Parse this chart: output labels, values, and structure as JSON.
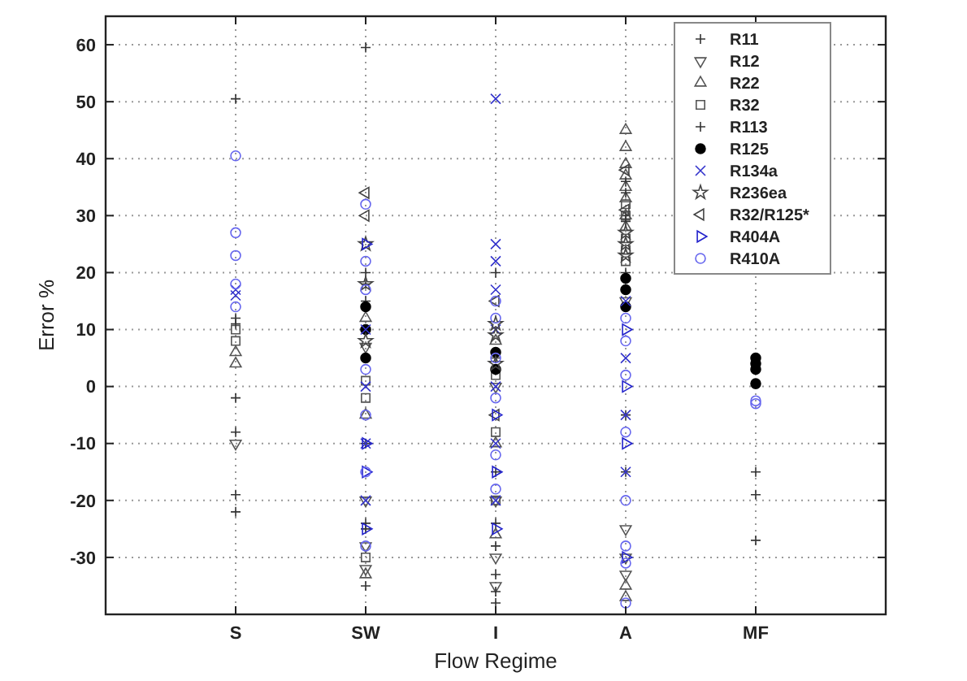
{
  "chart_data": {
    "type": "scatter",
    "xlabel": "Flow Regime",
    "ylabel": "Error %",
    "categories": [
      "S",
      "SW",
      "I",
      "A",
      "MF"
    ],
    "ylim": [
      -40,
      65
    ],
    "yticks": [
      -30,
      -20,
      -10,
      0,
      10,
      20,
      30,
      40,
      50,
      60
    ],
    "grid": true,
    "legend": "top right",
    "series": [
      {
        "name": "R11",
        "color": "#333333",
        "marker": "cross",
        "x": [
          "S",
          "SW",
          "SW",
          "SW",
          "I",
          "I",
          "I",
          "A",
          "A",
          "A"
        ],
        "values": [
          50.5,
          59.5,
          -10,
          -25,
          5,
          -15,
          -38,
          30,
          20,
          -5
        ]
      },
      {
        "name": "R12",
        "color": "#555555",
        "marker": "triangle-down",
        "x": [
          "S",
          "SW",
          "SW",
          "SW",
          "SW",
          "I",
          "I",
          "I",
          "I",
          "A",
          "A",
          "A",
          "A"
        ],
        "values": [
          -10,
          -32,
          -28,
          -20,
          7,
          -20,
          -30,
          -35,
          0,
          -25,
          -30,
          -33,
          15
        ]
      },
      {
        "name": "R22",
        "color": "#555555",
        "marker": "triangle",
        "x": [
          "S",
          "S",
          "SW",
          "SW",
          "SW",
          "I",
          "I",
          "I",
          "A",
          "A",
          "A",
          "A",
          "A",
          "A",
          "A",
          "A",
          "A",
          "A"
        ],
        "values": [
          6,
          4,
          12,
          -5,
          -33,
          8,
          -10,
          -26,
          45,
          42,
          39,
          37,
          35,
          33,
          30,
          28,
          -37,
          -35
        ]
      },
      {
        "name": "R32",
        "color": "#555555",
        "marker": "square",
        "x": [
          "S",
          "S",
          "SW",
          "SW",
          "SW",
          "I",
          "I",
          "I",
          "A",
          "A",
          "A",
          "A",
          "A"
        ],
        "values": [
          10,
          8,
          1,
          -2,
          -30,
          2,
          -8,
          -20,
          32,
          30,
          26,
          24,
          22
        ]
      },
      {
        "name": "R113",
        "color": "#333333",
        "marker": "cross",
        "x": [
          "S",
          "S",
          "S",
          "S",
          "S",
          "S",
          "SW",
          "SW",
          "SW",
          "SW",
          "SW",
          "I",
          "I",
          "I",
          "I",
          "I",
          "A",
          "A",
          "A",
          "A",
          "MF",
          "MF",
          "MF"
        ],
        "values": [
          12,
          11,
          -2,
          -8,
          -19,
          -22,
          20,
          18,
          15,
          -24,
          -35,
          20,
          -24,
          -28,
          -33,
          -36,
          36,
          34,
          29,
          -15,
          -15,
          -19,
          -27
        ]
      },
      {
        "name": "R125",
        "color": "#000000",
        "marker": "filled-circle",
        "x": [
          "SW",
          "SW",
          "SW",
          "I",
          "I",
          "A",
          "A",
          "A",
          "MF",
          "MF",
          "MF",
          "MF"
        ],
        "values": [
          14,
          10,
          5,
          6,
          3,
          19,
          17,
          14,
          5,
          4,
          3,
          0.5
        ]
      },
      {
        "name": "R134a",
        "color": "#3333cc",
        "marker": "x",
        "x": [
          "S",
          "S",
          "SW",
          "SW",
          "SW",
          "SW",
          "I",
          "I",
          "I",
          "I",
          "I",
          "I",
          "I",
          "I",
          "A",
          "A",
          "A",
          "A"
        ],
        "values": [
          17,
          16,
          10,
          0,
          -10,
          -20,
          50.5,
          25,
          22,
          17,
          10,
          0,
          -10,
          -20,
          15,
          5,
          -5,
          -15
        ]
      },
      {
        "name": "R236ea",
        "color": "#444444",
        "marker": "star",
        "x": [
          "SW",
          "SW",
          "SW",
          "I",
          "I",
          "I",
          "A",
          "A",
          "A"
        ],
        "values": [
          25,
          18,
          8,
          11,
          9,
          4,
          27,
          25,
          23
        ]
      },
      {
        "name": "R32/R125*",
        "color": "#444444",
        "marker": "triangle-left",
        "x": [
          "SW",
          "SW",
          "I",
          "I",
          "A",
          "A"
        ],
        "values": [
          34,
          30,
          15,
          -5,
          38,
          31
        ]
      },
      {
        "name": "R404A",
        "color": "#2222cc",
        "marker": "triangle-right",
        "x": [
          "SW",
          "SW",
          "SW",
          "SW",
          "I",
          "I",
          "I",
          "A",
          "A",
          "A",
          "A"
        ],
        "values": [
          25,
          -10,
          -15,
          -25,
          -5,
          -15,
          -25,
          10,
          0,
          -10,
          -30
        ]
      },
      {
        "name": "R410A",
        "color": "#6666ee",
        "marker": "circle",
        "x": [
          "S",
          "S",
          "S",
          "S",
          "S",
          "SW",
          "SW",
          "SW",
          "SW",
          "SW",
          "SW",
          "SW",
          "I",
          "I",
          "I",
          "I",
          "I",
          "I",
          "A",
          "A",
          "A",
          "A",
          "A",
          "A",
          "A",
          "A",
          "MF",
          "MF"
        ],
        "values": [
          40.5,
          27,
          23,
          18,
          14,
          32,
          22,
          17,
          3,
          -5,
          -15,
          -28,
          15,
          12,
          5,
          -2,
          -12,
          -18,
          12,
          8,
          2,
          -8,
          -20,
          -28,
          -31,
          -38,
          -3,
          -2.5
        ]
      }
    ]
  }
}
